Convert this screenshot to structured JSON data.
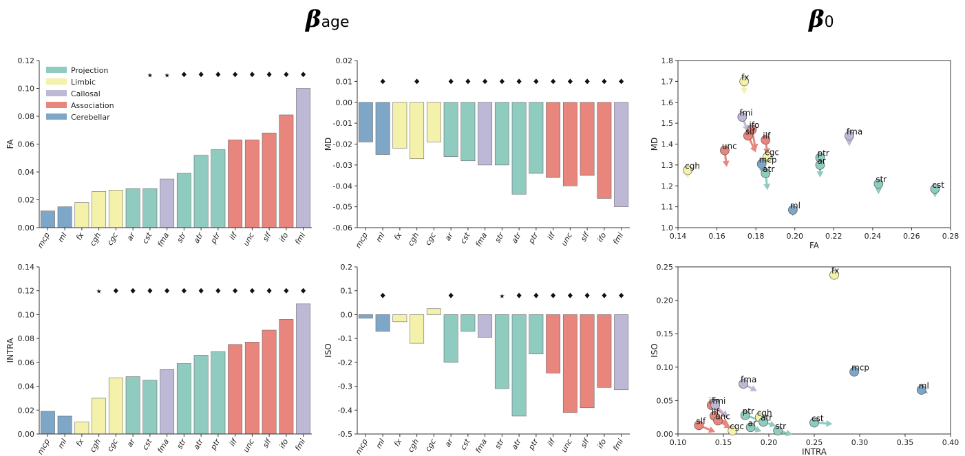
{
  "titles": {
    "left": {
      "symbol": "β",
      "subscript": "age"
    },
    "right": {
      "symbol": "β",
      "subscript": "0"
    }
  },
  "colors": {
    "Projection": "#8fcbbf",
    "Limbic": "#f4f1ab",
    "Callosal": "#bdb8d6",
    "Association": "#e8857c",
    "Cerebellar": "#7ea7c7"
  },
  "legend": {
    "entries": [
      "Projection",
      "Limbic",
      "Callosal",
      "Association",
      "Cerebellar"
    ],
    "placement": "top-left"
  },
  "chart_data": [
    {
      "id": "fa_bar",
      "type": "bar",
      "xlabel": "",
      "ylabel": "FA",
      "ylim": [
        0,
        0.12
      ],
      "yticks": [
        "0.00",
        "0.02",
        "0.04",
        "0.06",
        "0.08",
        "0.10",
        "0.12"
      ],
      "categories": [
        "mcp",
        "ml",
        "fx",
        "cgh",
        "cgc",
        "ar",
        "cst",
        "fma",
        "str",
        "atr",
        "ptr",
        "ilf",
        "unc",
        "slf",
        "ifo",
        "fmi"
      ],
      "groups": [
        "Cerebellar",
        "Cerebellar",
        "Limbic",
        "Limbic",
        "Limbic",
        "Projection",
        "Projection",
        "Callosal",
        "Projection",
        "Projection",
        "Projection",
        "Association",
        "Association",
        "Association",
        "Association",
        "Callosal"
      ],
      "values": [
        0.012,
        0.015,
        0.018,
        0.026,
        0.027,
        0.028,
        0.028,
        0.035,
        0.039,
        0.052,
        0.056,
        0.063,
        0.063,
        0.068,
        0.081,
        0.1
      ],
      "markers": [
        "",
        "",
        "",
        "",
        "",
        "",
        "star",
        "star",
        "diamond",
        "diamond",
        "diamond",
        "diamond",
        "diamond",
        "diamond",
        "diamond",
        "diamond"
      ],
      "marker_y": 0.11
    },
    {
      "id": "md_bar",
      "type": "bar",
      "xlabel": "",
      "ylabel": "MD",
      "ylim": [
        -0.06,
        0.02
      ],
      "yticks": [
        "-0.06",
        "-0.05",
        "-0.04",
        "-0.03",
        "-0.02",
        "-0.01",
        "0.00",
        "0.01",
        "0.02"
      ],
      "categories": [
        "mcp",
        "ml",
        "fx",
        "cgh",
        "cgc",
        "ar",
        "cst",
        "fma",
        "str",
        "atr",
        "ptr",
        "ilf",
        "unc",
        "slf",
        "ifo",
        "fmi"
      ],
      "groups": [
        "Cerebellar",
        "Cerebellar",
        "Limbic",
        "Limbic",
        "Limbic",
        "Projection",
        "Projection",
        "Callosal",
        "Projection",
        "Projection",
        "Projection",
        "Association",
        "Association",
        "Association",
        "Association",
        "Callosal"
      ],
      "values": [
        -0.019,
        -0.025,
        -0.022,
        -0.027,
        -0.019,
        -0.026,
        -0.028,
        -0.03,
        -0.03,
        -0.044,
        -0.034,
        -0.036,
        -0.04,
        -0.035,
        -0.046,
        -0.05
      ],
      "markers": [
        "",
        "diamond",
        "",
        "diamond",
        "",
        "diamond",
        "diamond",
        "diamond",
        "diamond",
        "diamond",
        "diamond",
        "diamond",
        "diamond",
        "diamond",
        "diamond",
        "diamond"
      ],
      "marker_y": 0.01
    },
    {
      "id": "intra_bar",
      "type": "bar",
      "xlabel": "",
      "ylabel": "INTRA",
      "ylim": [
        0,
        0.14
      ],
      "yticks": [
        "0.00",
        "0.02",
        "0.04",
        "0.06",
        "0.08",
        "0.10",
        "0.12",
        "0.14"
      ],
      "categories": [
        "mcp",
        "ml",
        "fx",
        "cgh",
        "cgc",
        "ar",
        "cst",
        "fma",
        "str",
        "atr",
        "ptr",
        "ilf",
        "unc",
        "slf",
        "ifo",
        "fmi"
      ],
      "groups": [
        "Cerebellar",
        "Cerebellar",
        "Limbic",
        "Limbic",
        "Limbic",
        "Projection",
        "Projection",
        "Callosal",
        "Projection",
        "Projection",
        "Projection",
        "Association",
        "Association",
        "Association",
        "Association",
        "Callosal"
      ],
      "values": [
        0.019,
        0.015,
        0.01,
        0.03,
        0.047,
        0.048,
        0.045,
        0.054,
        0.059,
        0.066,
        0.069,
        0.075,
        0.077,
        0.087,
        0.096,
        0.109
      ],
      "markers": [
        "",
        "",
        "",
        "star",
        "diamond",
        "diamond",
        "diamond",
        "diamond",
        "diamond",
        "diamond",
        "diamond",
        "diamond",
        "diamond",
        "diamond",
        "diamond",
        "diamond"
      ],
      "marker_y": 0.12
    },
    {
      "id": "iso_bar",
      "type": "bar",
      "xlabel": "",
      "ylabel": "ISO",
      "ylim": [
        -0.5,
        0.2
      ],
      "yticks": [
        "-0.5",
        "-0.4",
        "-0.3",
        "-0.2",
        "-0.1",
        "0.0",
        "0.1",
        "0.2"
      ],
      "categories": [
        "mcp",
        "ml",
        "fx",
        "cgh",
        "cgc",
        "ar",
        "cst",
        "fma",
        "str",
        "atr",
        "ptr",
        "ilf",
        "unc",
        "slf",
        "ifo",
        "fmi"
      ],
      "groups": [
        "Cerebellar",
        "Cerebellar",
        "Limbic",
        "Limbic",
        "Limbic",
        "Projection",
        "Projection",
        "Callosal",
        "Projection",
        "Projection",
        "Projection",
        "Association",
        "Association",
        "Association",
        "Association",
        "Callosal"
      ],
      "values": [
        -0.015,
        -0.07,
        -0.03,
        -0.12,
        0.025,
        -0.2,
        -0.07,
        -0.095,
        -0.31,
        -0.425,
        -0.165,
        -0.245,
        -0.41,
        -0.39,
        -0.305,
        -0.315
      ],
      "markers": [
        "",
        "diamond",
        "",
        "",
        "",
        "diamond",
        "",
        "",
        "star",
        "diamond",
        "diamond",
        "diamond",
        "diamond",
        "diamond",
        "diamond",
        "diamond"
      ],
      "marker_y": 0.08
    },
    {
      "id": "fa_md_scatter",
      "type": "scatter",
      "xlabel": "FA",
      "ylabel": "MD",
      "xlim": [
        0.14,
        0.28
      ],
      "ylim": [
        1.0,
        1.8
      ],
      "xticks": [
        "0.14",
        "0.16",
        "0.18",
        "0.20",
        "0.22",
        "0.24",
        "0.26",
        "0.28"
      ],
      "yticks": [
        "1.0",
        "1.1",
        "1.2",
        "1.3",
        "1.4",
        "1.5",
        "1.6",
        "1.7",
        "1.8"
      ],
      "points": [
        {
          "label": "fx",
          "group": "Limbic",
          "x": 0.174,
          "y": 1.7,
          "dx": 0.0,
          "dy": -0.06
        },
        {
          "label": "fmi",
          "group": "Callosal",
          "x": 0.173,
          "y": 1.53,
          "dx": 0.003,
          "dy": -0.07
        },
        {
          "label": "ifo",
          "group": "Association",
          "x": 0.178,
          "y": 1.47,
          "dx": 0.002,
          "dy": -0.1
        },
        {
          "label": "slf",
          "group": "Association",
          "x": 0.176,
          "y": 1.44,
          "dx": 0.004,
          "dy": -0.08
        },
        {
          "label": "ilf",
          "group": "Association",
          "x": 0.185,
          "y": 1.42,
          "dx": 0.001,
          "dy": -0.07
        },
        {
          "label": "unc",
          "group": "Association",
          "x": 0.164,
          "y": 1.37,
          "dx": 0.001,
          "dy": -0.08
        },
        {
          "label": "cgc",
          "group": "Limbic",
          "x": 0.186,
          "y": 1.34,
          "dx": 0.0,
          "dy": -0.04
        },
        {
          "label": "mcp",
          "group": "Cerebellar",
          "x": 0.183,
          "y": 1.305,
          "dx": 0.001,
          "dy": -0.05
        },
        {
          "label": "atr",
          "group": "Projection",
          "x": 0.185,
          "y": 1.26,
          "dx": 0.001,
          "dy": -0.08
        },
        {
          "label": "ptr",
          "group": "Projection",
          "x": 0.213,
          "y": 1.335,
          "dx": 0.0,
          "dy": -0.05
        },
        {
          "label": "ar",
          "group": "Projection",
          "x": 0.213,
          "y": 1.3,
          "dx": 0.0,
          "dy": -0.06
        },
        {
          "label": "fma",
          "group": "Callosal",
          "x": 0.228,
          "y": 1.44,
          "dx": 0.0,
          "dy": -0.05
        },
        {
          "label": "cgh",
          "group": "Limbic",
          "x": 0.145,
          "y": 1.275,
          "dx": 0.0,
          "dy": -0.04
        },
        {
          "label": "str",
          "group": "Projection",
          "x": 0.243,
          "y": 1.21,
          "dx": 0.0,
          "dy": -0.05
        },
        {
          "label": "cst",
          "group": "Projection",
          "x": 0.272,
          "y": 1.185,
          "dx": 0.0,
          "dy": -0.04
        },
        {
          "label": "ml",
          "group": "Cerebellar",
          "x": 0.199,
          "y": 1.085,
          "dx": 0.0,
          "dy": -0.03
        }
      ]
    },
    {
      "id": "intra_iso_scatter",
      "type": "scatter",
      "xlabel": "INTRA",
      "ylabel": "ISO",
      "xlim": [
        0.1,
        0.4
      ],
      "ylim": [
        0.0,
        0.25
      ],
      "xticks": [
        "0.10",
        "0.15",
        "0.20",
        "0.25",
        "0.30",
        "0.35",
        "0.40"
      ],
      "yticks": [
        "0.00",
        "0.05",
        "0.10",
        "0.15",
        "0.20",
        "0.25"
      ],
      "points": [
        {
          "label": "fx",
          "group": "Limbic",
          "x": 0.272,
          "y": 0.238,
          "dx": -0.007,
          "dy": 0.0
        },
        {
          "label": "mcp",
          "group": "Cerebellar",
          "x": 0.294,
          "y": 0.093,
          "dx": 0.006,
          "dy": 0.002
        },
        {
          "label": "ml",
          "group": "Cerebellar",
          "x": 0.368,
          "y": 0.066,
          "dx": 0.007,
          "dy": -0.005
        },
        {
          "label": "fma",
          "group": "Callosal",
          "x": 0.172,
          "y": 0.075,
          "dx": 0.015,
          "dy": -0.011
        },
        {
          "label": "ifo",
          "group": "Association",
          "x": 0.137,
          "y": 0.043,
          "dx": 0.018,
          "dy": -0.018
        },
        {
          "label": "fmi",
          "group": "Callosal",
          "x": 0.141,
          "y": 0.043,
          "dx": 0.014,
          "dy": -0.018
        },
        {
          "label": "ilf",
          "group": "Association",
          "x": 0.14,
          "y": 0.027,
          "dx": 0.016,
          "dy": -0.013
        },
        {
          "label": "slf",
          "group": "Association",
          "x": 0.123,
          "y": 0.013,
          "dx": 0.018,
          "dy": -0.01
        },
        {
          "label": "unc",
          "group": "Association",
          "x": 0.144,
          "y": 0.02,
          "dx": 0.014,
          "dy": -0.011
        },
        {
          "label": "cgc",
          "group": "Limbic",
          "x": 0.16,
          "y": 0.005,
          "dx": 0.008,
          "dy": 0.0
        },
        {
          "label": "ptr",
          "group": "Projection",
          "x": 0.174,
          "y": 0.028,
          "dx": 0.018,
          "dy": -0.008
        },
        {
          "label": "cgh",
          "group": "Limbic",
          "x": 0.19,
          "y": 0.025,
          "dx": 0.008,
          "dy": -0.004
        },
        {
          "label": "atr",
          "group": "Projection",
          "x": 0.194,
          "y": 0.018,
          "dx": 0.014,
          "dy": -0.006
        },
        {
          "label": "ar",
          "group": "Projection",
          "x": 0.18,
          "y": 0.01,
          "dx": 0.012,
          "dy": -0.006
        },
        {
          "label": "str",
          "group": "Projection",
          "x": 0.21,
          "y": 0.005,
          "dx": 0.016,
          "dy": -0.006
        },
        {
          "label": "cst",
          "group": "Projection",
          "x": 0.25,
          "y": 0.017,
          "dx": 0.02,
          "dy": -0.002
        }
      ]
    }
  ]
}
